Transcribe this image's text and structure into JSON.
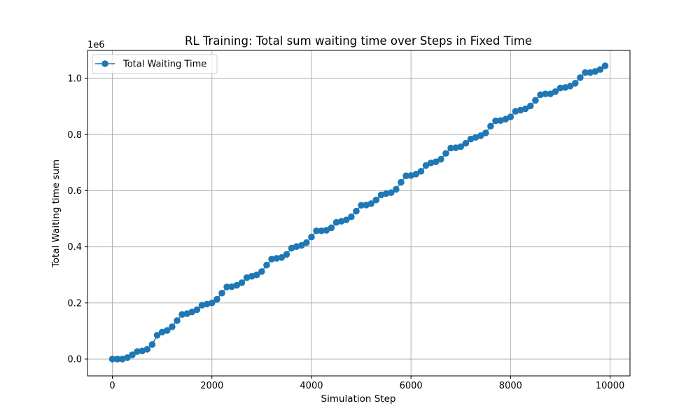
{
  "chart_data": {
    "type": "line",
    "title": "RL Training: Total sum waiting time over Steps in Fixed Time",
    "xlabel": "Simulation Step",
    "ylabel": "Total Waiting time sum",
    "y_offset_label": "1e6",
    "y_multiplier": 1000000,
    "xlim": [
      -500,
      10400
    ],
    "ylim": [
      -60000,
      1100000
    ],
    "x_ticks": [
      0,
      2000,
      4000,
      6000,
      8000,
      10000
    ],
    "x_tick_labels": [
      "0",
      "2000",
      "4000",
      "6000",
      "8000",
      "10000"
    ],
    "y_ticks": [
      0,
      200000,
      400000,
      600000,
      800000,
      1000000
    ],
    "y_tick_labels": [
      "0.0",
      "0.2",
      "0.4",
      "0.6",
      "0.8",
      "1.0"
    ],
    "grid": true,
    "legend_position": "top-left",
    "series": [
      {
        "name": "Total Waiting Time",
        "color": "#1f77b4",
        "marker": "circle",
        "x": [
          0,
          100,
          200,
          300,
          400,
          500,
          600,
          700,
          800,
          900,
          1000,
          1100,
          1200,
          1300,
          1400,
          1500,
          1600,
          1700,
          1800,
          1900,
          2000,
          2100,
          2200,
          2300,
          2400,
          2500,
          2600,
          2700,
          2800,
          2900,
          3000,
          3100,
          3200,
          3300,
          3400,
          3500,
          3600,
          3700,
          3800,
          3900,
          4000,
          4100,
          4200,
          4300,
          4400,
          4500,
          4600,
          4700,
          4800,
          4900,
          5000,
          5100,
          5200,
          5300,
          5400,
          5500,
          5600,
          5700,
          5800,
          5900,
          6000,
          6100,
          6200,
          6300,
          6400,
          6500,
          6600,
          6700,
          6800,
          6900,
          7000,
          7100,
          7200,
          7300,
          7400,
          7500,
          7600,
          7700,
          7800,
          7900,
          8000,
          8100,
          8200,
          8300,
          8400,
          8500,
          8600,
          8700,
          8800,
          8900,
          9000,
          9100,
          9200,
          9300,
          9400,
          9500,
          9600,
          9700,
          9800,
          9900
        ],
        "y": [
          0,
          0,
          0,
          5000,
          15000,
          27000,
          29000,
          35000,
          52000,
          85000,
          96000,
          102000,
          115000,
          137000,
          159000,
          162000,
          168000,
          176000,
          192000,
          196000,
          200000,
          213000,
          235000,
          257000,
          258000,
          263000,
          272000,
          290000,
          295000,
          300000,
          312000,
          335000,
          356000,
          359000,
          362000,
          373000,
          395000,
          401000,
          405000,
          415000,
          435000,
          457000,
          457000,
          459000,
          468000,
          487000,
          491000,
          496000,
          507000,
          527000,
          548000,
          549000,
          554000,
          567000,
          585000,
          590000,
          593000,
          605000,
          630000,
          653000,
          654000,
          659000,
          669000,
          690000,
          699000,
          703000,
          712000,
          733000,
          752000,
          753000,
          757000,
          769000,
          784000,
          790000,
          796000,
          806000,
          830000,
          849000,
          850000,
          855000,
          863000,
          883000,
          887000,
          892000,
          902000,
          922000,
          942000,
          945000,
          945000,
          953000,
          966000,
          968000,
          973000,
          983000,
          1003000,
          1021000,
          1021000,
          1025000,
          1032000,
          1045000
        ]
      }
    ]
  }
}
